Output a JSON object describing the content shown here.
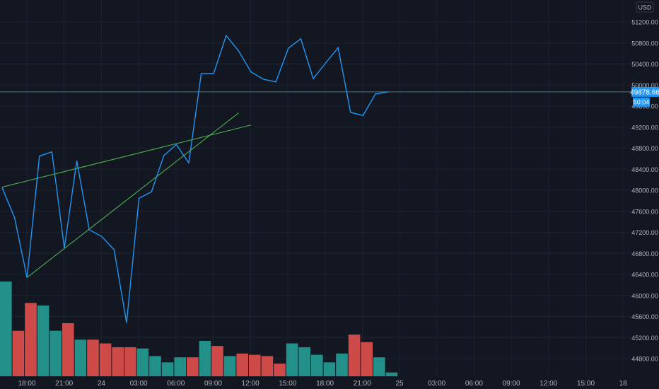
{
  "chart_data": {
    "type": "line",
    "currency": "USD",
    "last_price_label": "49878.66",
    "countdown_label": "50:04",
    "y_ticks": [
      "51200.00",
      "50800.00",
      "50400.00",
      "50000.00",
      "49600.00",
      "49200.00",
      "48800.00",
      "48400.00",
      "48000.00",
      "47600.00",
      "47200.00",
      "46800.00",
      "46400.00",
      "46000.00",
      "45600.00",
      "45200.00",
      "44800.00"
    ],
    "x_ticks": [
      "18:00",
      "21:00",
      "24",
      "03:00",
      "06:00",
      "09:00",
      "12:00",
      "15:00",
      "18:00",
      "21:00",
      "25",
      "03:00",
      "06:00",
      "09:00",
      "12:00",
      "15:00",
      "18"
    ],
    "price_line": [
      48050,
      47480,
      46340,
      48650,
      48730,
      46900,
      48560,
      47250,
      47120,
      46870,
      45480,
      47850,
      47970,
      48660,
      48870,
      48520,
      50220,
      50220,
      50940,
      50650,
      50250,
      50110,
      50060,
      50700,
      50880,
      50120,
      50420,
      50710,
      49480,
      49420,
      49830,
      49870
    ],
    "volume": {
      "values": [
        7.5,
        3.6,
        5.8,
        5.6,
        3.6,
        4.2,
        2.9,
        2.9,
        2.6,
        2.3,
        2.3,
        2.2,
        1.6,
        1.1,
        1.5,
        1.5,
        2.8,
        2.4,
        1.6,
        1.8,
        1.7,
        1.6,
        1.0,
        2.6,
        2.3,
        1.7,
        1.1,
        1.8,
        3.3,
        2.7,
        1.5,
        0.3
      ],
      "directions": [
        "up",
        "down",
        "down",
        "up",
        "up",
        "down",
        "up",
        "down",
        "down",
        "down",
        "down",
        "up",
        "up",
        "up",
        "up",
        "down",
        "up",
        "down",
        "up",
        "down",
        "down",
        "down",
        "down",
        "up",
        "up",
        "up",
        "up",
        "up",
        "down",
        "down",
        "up",
        "up"
      ]
    },
    "trendlines": [
      {
        "color": "#4caf50",
        "from": {
          "bar": 0,
          "price": 48060
        },
        "to": {
          "bar": 20,
          "price": 49240
        }
      },
      {
        "color": "#4caf50",
        "from": {
          "bar": 2,
          "price": 46340
        },
        "to": {
          "bar": 19,
          "price": 49470
        }
      }
    ],
    "colors": {
      "background": "#131722",
      "price_line": "#2196f3",
      "volume_up": "#26a69a",
      "volume_down": "#ef5350",
      "grid": "#1e2230",
      "axis_text": "#b2b5be",
      "price_label_bg": "#2196f3",
      "horizontal_level": "#4a7a8a"
    }
  }
}
